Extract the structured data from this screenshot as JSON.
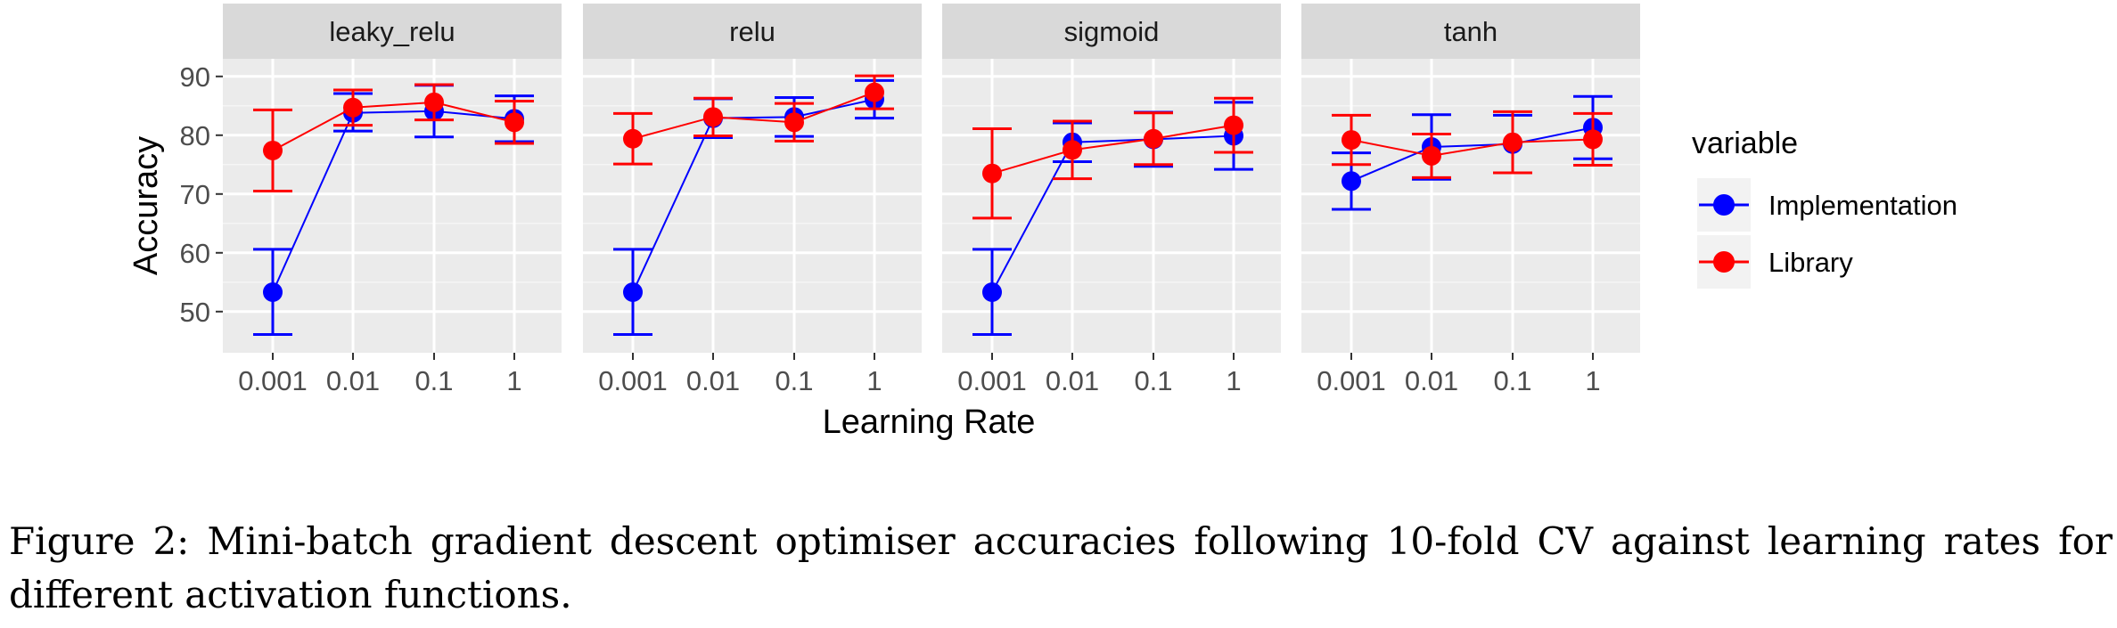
{
  "chart_data": {
    "type": "line",
    "facets": [
      "leaky_relu",
      "relu",
      "sigmoid",
      "tanh"
    ],
    "categories": [
      "0.001",
      "0.01",
      "0.1",
      "1"
    ],
    "xlabel": "Learning Rate",
    "ylabel": "Accuracy",
    "ylim": [
      43,
      93
    ],
    "yticks": [
      50,
      60,
      70,
      80,
      90
    ],
    "grid": true,
    "legend": {
      "title": "variable",
      "position": "right",
      "entries": [
        "Implementation",
        "Library"
      ]
    },
    "series": [
      {
        "name": "Implementation",
        "color": "#0000ff",
        "panels": [
          {
            "values": [
              53.3,
              83.8,
              84.1,
              82.8
            ],
            "lower": [
              46.1,
              80.7,
              79.7,
              78.9
            ],
            "upper": [
              60.6,
              87.1,
              88.5,
              86.7
            ]
          },
          {
            "values": [
              53.3,
              82.9,
              83.1,
              86.1
            ],
            "lower": [
              46.1,
              79.6,
              79.8,
              82.9
            ],
            "upper": [
              60.6,
              86.2,
              86.4,
              89.3
            ]
          },
          {
            "values": [
              53.3,
              78.8,
              79.3,
              79.9
            ],
            "lower": [
              46.1,
              75.5,
              74.7,
              74.2
            ],
            "upper": [
              60.6,
              82.1,
              83.9,
              85.6
            ]
          },
          {
            "values": [
              72.2,
              78.0,
              78.5,
              81.3
            ],
            "lower": [
              67.4,
              72.5,
              73.6,
              76.0
            ],
            "upper": [
              77.0,
              83.5,
              83.4,
              86.6
            ]
          }
        ]
      },
      {
        "name": "Library",
        "color": "#ff0000",
        "panels": [
          {
            "values": [
              77.4,
              84.7,
              85.6,
              82.2
            ],
            "lower": [
              70.5,
              81.7,
              82.6,
              78.6
            ],
            "upper": [
              84.3,
              87.7,
              88.6,
              85.8
            ]
          },
          {
            "values": [
              79.4,
              83.1,
              82.2,
              87.3
            ],
            "lower": [
              75.1,
              79.9,
              79.0,
              84.5
            ],
            "upper": [
              83.7,
              86.3,
              85.4,
              90.1
            ]
          },
          {
            "values": [
              73.5,
              77.5,
              79.4,
              81.7
            ],
            "lower": [
              65.9,
              72.6,
              75.0,
              77.1
            ],
            "upper": [
              81.1,
              82.4,
              83.8,
              86.3
            ]
          },
          {
            "values": [
              79.2,
              76.5,
              78.8,
              79.3
            ],
            "lower": [
              75.0,
              72.8,
              73.6,
              74.9
            ],
            "upper": [
              83.4,
              80.2,
              84.0,
              83.7
            ]
          }
        ]
      }
    ]
  },
  "caption": "Figure 2: Mini-batch gradient descent optimiser accuracies following 10-fold CV against learning rates for different activation functions."
}
